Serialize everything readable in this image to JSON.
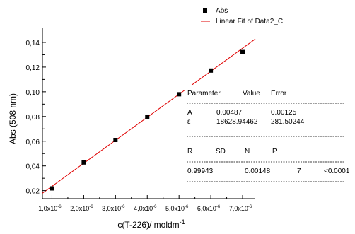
{
  "chart_data": {
    "type": "scatter",
    "xlabel": "c(T-226)/ moldm",
    "xlabel_sup": "-1",
    "ylabel": "Abs (508 nm)",
    "xlim": [
      7e-07,
      7.4e-06
    ],
    "ylim": [
      0.0135,
      0.152
    ],
    "x_ticks": [
      {
        "value": 1e-06,
        "mantissa": "1,0x10",
        "exp": "-6"
      },
      {
        "value": 2e-06,
        "mantissa": "2,0x10",
        "exp": "-6"
      },
      {
        "value": 3e-06,
        "mantissa": "3,0x10",
        "exp": "-6"
      },
      {
        "value": 4e-06,
        "mantissa": "4,0x10",
        "exp": "-6"
      },
      {
        "value": 5e-06,
        "mantissa": "5,0x10",
        "exp": "-6"
      },
      {
        "value": 6e-06,
        "mantissa": "6,0x10",
        "exp": "-6"
      },
      {
        "value": 7e-06,
        "mantissa": "7,0x10",
        "exp": "-6"
      }
    ],
    "y_ticks": [
      {
        "value": 0.02,
        "label": "0,02"
      },
      {
        "value": 0.04,
        "label": "0,04"
      },
      {
        "value": 0.06,
        "label": "0,06"
      },
      {
        "value": 0.08,
        "label": "0,08"
      },
      {
        "value": 0.1,
        "label": "0,10"
      },
      {
        "value": 0.12,
        "label": "0,12"
      },
      {
        "value": 0.14,
        "label": "0,14"
      }
    ],
    "series": [
      {
        "name": "Abs",
        "type": "scatter",
        "marker": "square",
        "color": "#000000",
        "x": [
          1e-06,
          2e-06,
          3e-06,
          4e-06,
          5e-06,
          6e-06,
          7e-06
        ],
        "y": [
          0.0218,
          0.0428,
          0.061,
          0.0799,
          0.098,
          0.1172,
          0.1322
        ]
      },
      {
        "name": "Linear Fit of Data2_C",
        "type": "line",
        "color": "#e00000",
        "intercept": 0.00487,
        "slope": 18628.94462
      }
    ],
    "legend": {
      "position": "top-right"
    },
    "fit_table": {
      "params_header": [
        "Parameter",
        "Value",
        "Error"
      ],
      "params_rows": [
        [
          "A",
          "0.00487",
          "0.00125"
        ],
        [
          "ε",
          "18628.94462",
          "281.50244"
        ]
      ],
      "stats_header": [
        "R",
        "SD",
        "N",
        "P"
      ],
      "stats_row": [
        "0.99943",
        "0.00148",
        "7",
        "<0.0001"
      ]
    }
  }
}
